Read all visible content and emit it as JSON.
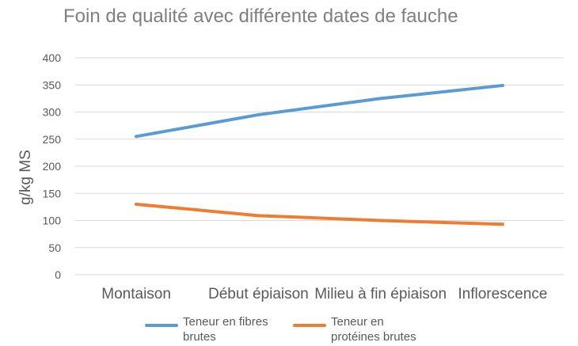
{
  "chart_data": {
    "type": "line",
    "title": "Foin de qualité avec différente dates de fauche",
    "xlabel": "",
    "ylabel": "g/kg MS",
    "ylim": [
      0,
      400
    ],
    "yticks": [
      0,
      50,
      100,
      150,
      200,
      250,
      300,
      350,
      400
    ],
    "grid": true,
    "legend_position": "bottom",
    "categories": [
      "Montaison",
      "Début épiaison",
      "Milieu à fin épiaison",
      "Inflorescence"
    ],
    "series": [
      {
        "name": "Teneur en fibres brutes",
        "name_lines": [
          "Teneur en fibres",
          "brutes"
        ],
        "color": "#5b9bd5",
        "values": [
          255,
          295,
          325,
          349
        ]
      },
      {
        "name": "Teneur en protéines brutes",
        "name_lines": [
          "Teneur en",
          "protéines brutes"
        ],
        "color": "#ed7d31",
        "values": [
          130,
          109,
          100,
          93
        ]
      }
    ]
  }
}
